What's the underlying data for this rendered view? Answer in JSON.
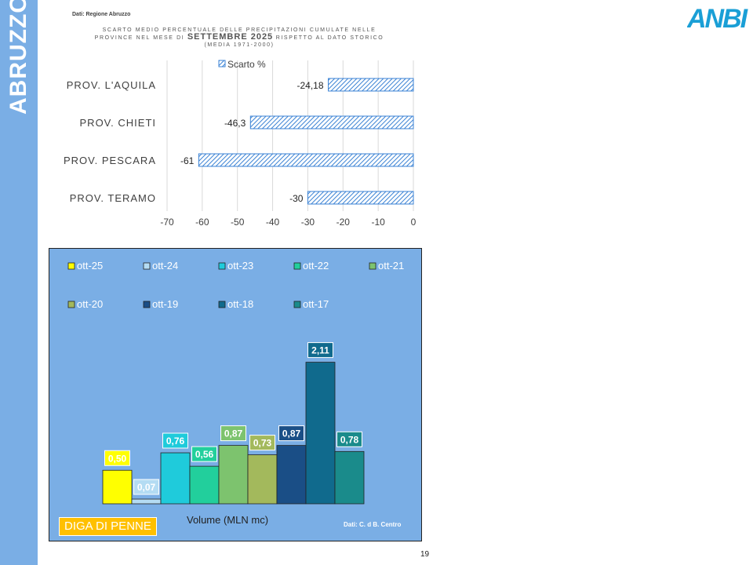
{
  "side_title": "ABRUZZO",
  "source_top": "Dati: Regione Abruzzo",
  "chart1_title": {
    "part1": "SCARTO MEDIO PERCENTUALE DELLE PRECIPITAZIONI CUMULATE NELLE PROVINCE NEL MESE DI",
    "highlight": "SETTEMBRE 2025",
    "part2": "RISPETTO AL DATO STORICO",
    "subtitle": "(MEDIA 1971-2000)"
  },
  "logo_text": "ANBI",
  "colors": {
    "side_band": "#7aaee5",
    "bar_hatch": "#3a82d4",
    "panel_bg": "#7aaee5",
    "diga_label": "#ffc000",
    "logo": "#1a9fd6"
  },
  "chart_data": [
    {
      "type": "bar",
      "orientation": "horizontal",
      "categories": [
        "PROV. L'AQUILA",
        "PROV. CHIETI",
        "PROV. PESCARA",
        "PROV. TERAMO"
      ],
      "series": [
        {
          "name": "Scarto %",
          "values": [
            -24.18,
            -46.3,
            -61,
            -30
          ],
          "labels": [
            "-24,18",
            "-46,3",
            "-61",
            "-30"
          ]
        }
      ],
      "xlim": [
        -70,
        0
      ],
      "xticks": [
        -70,
        -60,
        -50,
        -40,
        -30,
        -20,
        -10,
        0
      ],
      "grid": true,
      "legend": "top"
    },
    {
      "type": "bar",
      "categories": [
        "ott-25",
        "ott-24",
        "ott-23",
        "ott-22",
        "ott-21",
        "ott-20",
        "ott-19",
        "ott-18",
        "ott-17"
      ],
      "series": [
        {
          "name": "ott-25",
          "color": "#ffff00",
          "value": 0.5,
          "label": "0,50"
        },
        {
          "name": "ott-24",
          "color": "#b4dcf3",
          "value": 0.07,
          "label": "0,07"
        },
        {
          "name": "ott-23",
          "color": "#1fcbdb",
          "value": 0.76,
          "label": "0,76"
        },
        {
          "name": "ott-22",
          "color": "#22cf9c",
          "value": 0.56,
          "label": "0,56"
        },
        {
          "name": "ott-21",
          "color": "#7dc36e",
          "value": 0.87,
          "label": "0,87"
        },
        {
          "name": "ott-20",
          "color": "#a3b95c",
          "value": 0.73,
          "label": "0,73"
        },
        {
          "name": "ott-19",
          "color": "#1a4e86",
          "value": 0.87,
          "label": "0,87"
        },
        {
          "name": "ott-18",
          "color": "#106a8d",
          "value": 2.11,
          "label": "2,11"
        },
        {
          "name": "ott-17",
          "color": "#1a8b8b",
          "value": 0.78,
          "label": "0,78"
        }
      ],
      "xlabel": "Volume (MLN mc)",
      "reservoir_label": "DIGA DI PENNE",
      "source": "Dati: C. d B. Centro",
      "legend": "top"
    }
  ],
  "page_number": "19"
}
